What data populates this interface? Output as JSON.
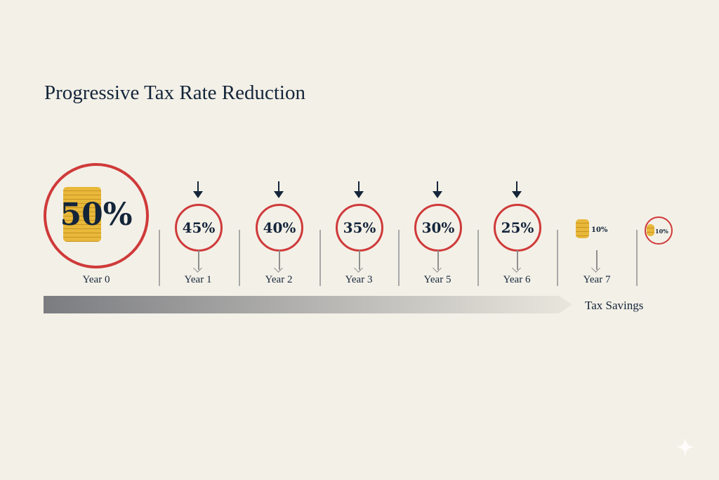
{
  "title": "Progressive Tax Rate Reduction",
  "colors": {
    "ring": "#cf3a3a",
    "text": "#14253a",
    "coin": "#e8b83a"
  },
  "start": {
    "rate": "50%",
    "label": "Year 0"
  },
  "steps": [
    {
      "rate": "45%",
      "label": "Year 1"
    },
    {
      "rate": "40%",
      "label": "Year 2"
    },
    {
      "rate": "35%",
      "label": "Year 3"
    },
    {
      "rate": "30%",
      "label": "Year 5"
    },
    {
      "rate": "25%",
      "label": "Year 6"
    }
  ],
  "year7": {
    "rate": "10%",
    "label": "Year 7"
  },
  "final": {
    "rate": "10%"
  },
  "bar_label": "Tax Savings"
}
